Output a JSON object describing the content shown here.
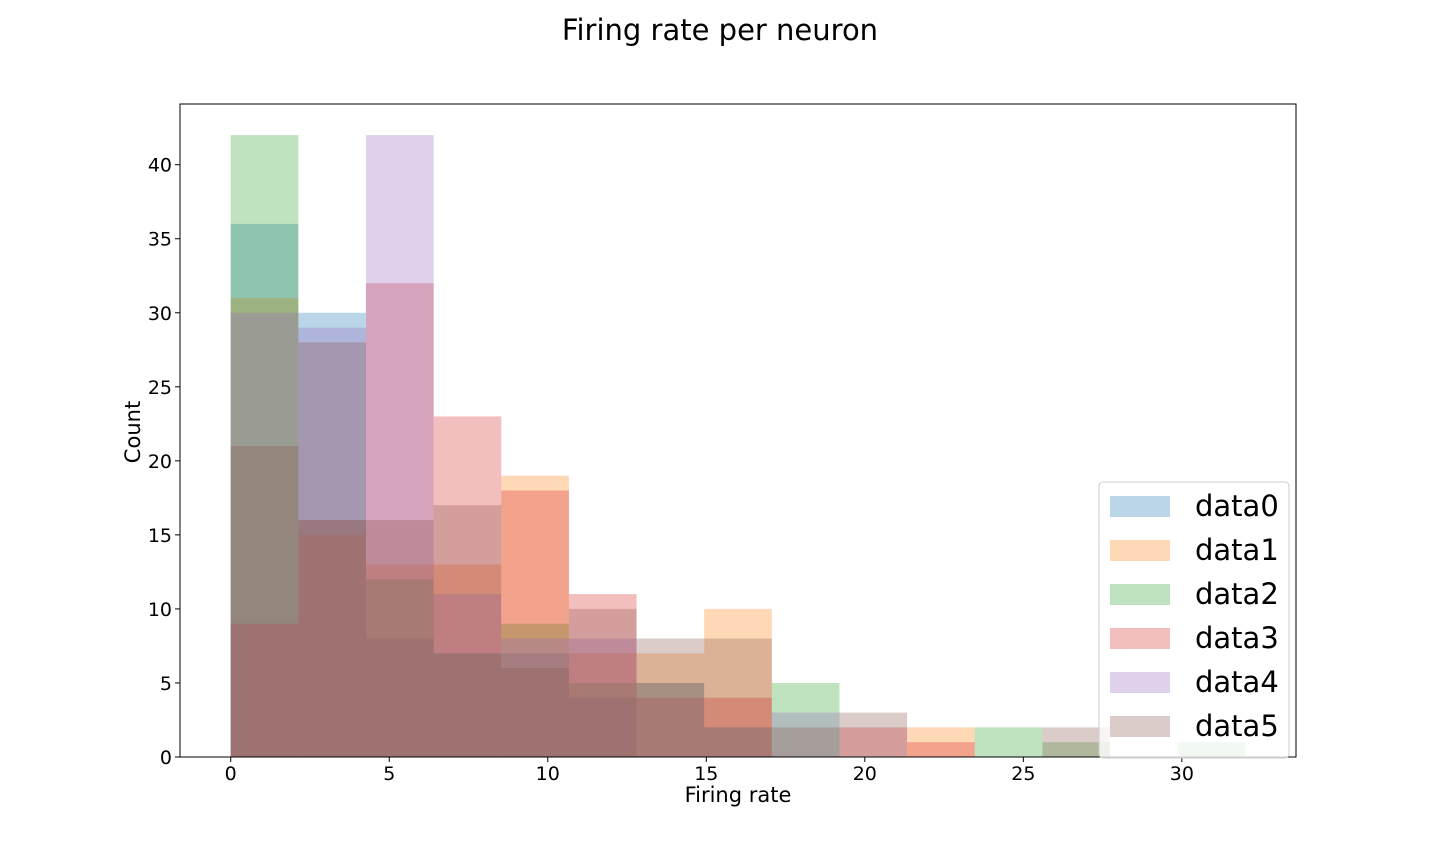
{
  "chart_data": {
    "type": "bar",
    "subtype": "overlapping-histogram",
    "title": "Firing rate per neuron",
    "xlabel": "Firing rate",
    "ylabel": "Count",
    "xlim": [
      -1.6,
      33.6
    ],
    "ylim": [
      0,
      44.1
    ],
    "xticks": [
      0,
      5,
      10,
      15,
      20,
      25,
      30
    ],
    "yticks": [
      0,
      5,
      10,
      15,
      20,
      25,
      30,
      35,
      40
    ],
    "bin_edges": [
      0,
      2.133,
      4.267,
      6.4,
      8.533,
      10.667,
      12.8,
      14.933,
      17.067,
      19.2,
      21.333,
      23.467,
      25.6,
      27.733,
      29.867,
      32
    ],
    "bar_alpha": 0.3,
    "grid": false,
    "legend_position": "lower-right",
    "series": [
      {
        "name": "data0",
        "color": "#1f77b4",
        "values": [
          36,
          30,
          8,
          7,
          7,
          4,
          0,
          0,
          0,
          0,
          0,
          0,
          0,
          0,
          0
        ]
      },
      {
        "name": "data1",
        "color": "#ff7f0e",
        "values": [
          31,
          15,
          13,
          13,
          19,
          7,
          7,
          10,
          0,
          0,
          2,
          0,
          0,
          0,
          0
        ]
      },
      {
        "name": "data2",
        "color": "#2ca02c",
        "values": [
          42,
          16,
          12,
          7,
          9,
          5,
          5,
          2,
          5,
          0,
          0,
          2,
          1,
          0,
          1
        ]
      },
      {
        "name": "data3",
        "color": "#d62728",
        "values": [
          9,
          16,
          32,
          23,
          18,
          11,
          4,
          4,
          0,
          2,
          1,
          0,
          0,
          0,
          0
        ]
      },
      {
        "name": "data4",
        "color": "#9467bd",
        "values": [
          30,
          29,
          42,
          11,
          8,
          8,
          5,
          2,
          3,
          0,
          0,
          0,
          0,
          0,
          0
        ]
      },
      {
        "name": "data5",
        "color": "#8c564b",
        "values": [
          21,
          28,
          16,
          17,
          6,
          10,
          8,
          8,
          2,
          3,
          0,
          0,
          2,
          0,
          0
        ]
      }
    ]
  }
}
